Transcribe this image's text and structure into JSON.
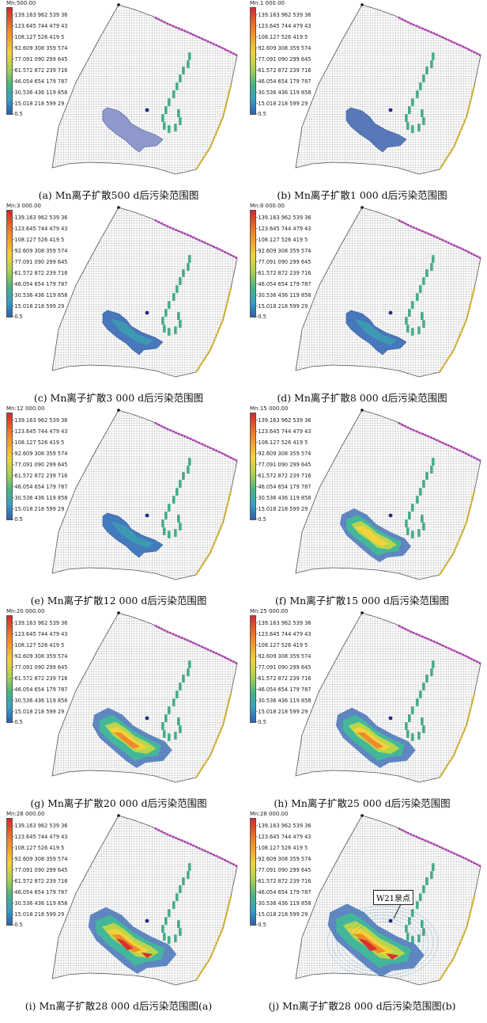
{
  "legend": {
    "labels": [
      "139.163 962 539 36",
      "123.645 744 479 43",
      "108.127 526 419 5",
      "92.609 308 359 574",
      "77.091 090 299 645",
      "61.572 872 239 716",
      "46.054 654 179 787",
      "30.536 436 119 858",
      "15.018 218 599 29",
      "-0.5"
    ]
  },
  "panels": [
    {
      "id": "a",
      "title": "Mn:500.00",
      "caption": "(a) Mn离子扩散500 d后污染范围图",
      "plume_level": 1
    },
    {
      "id": "b",
      "title": "Mn:1 000.00",
      "caption": "(b) Mn离子扩散1 000 d后污染范围图",
      "plume_level": 2
    },
    {
      "id": "c",
      "title": "Mn:3 000.00",
      "caption": "(c) Mn离子扩散3 000 d后污染范围图",
      "plume_level": 3
    },
    {
      "id": "d",
      "title": "Mn:8 000.00",
      "caption": "(d) Mn离子扩散8 000 d后污染范围图",
      "plume_level": 3
    },
    {
      "id": "e",
      "title": "Mn:12 000.00",
      "caption": "(e) Mn离子扩散12 000 d后污染范围图",
      "plume_level": 4
    },
    {
      "id": "f",
      "title": "Mn:15 000.00",
      "caption": "(f) Mn离子扩散15 000 d后污染范围图",
      "plume_level": 5
    },
    {
      "id": "g",
      "title": "Mn:20 000.00",
      "caption": "(g) Mn离子扩散20 000 d后污染范围图",
      "plume_level": 6
    },
    {
      "id": "h",
      "title": "Mn:25 000.00",
      "caption": "(h) Mn离子扩散25 000 d后污染范围图",
      "plume_level": 6
    },
    {
      "id": "i",
      "title": "Mn:28 000.00",
      "caption": "(i) Mn离子扩散28 000 d后污染范围图(a)",
      "plume_level": 7
    },
    {
      "id": "j",
      "title": "Mn:28 000.00",
      "caption": "(j) Mn离子扩散28 000 d后污染范围图(b)",
      "plume_level": 8,
      "annotation": "W21泉点"
    }
  ]
}
